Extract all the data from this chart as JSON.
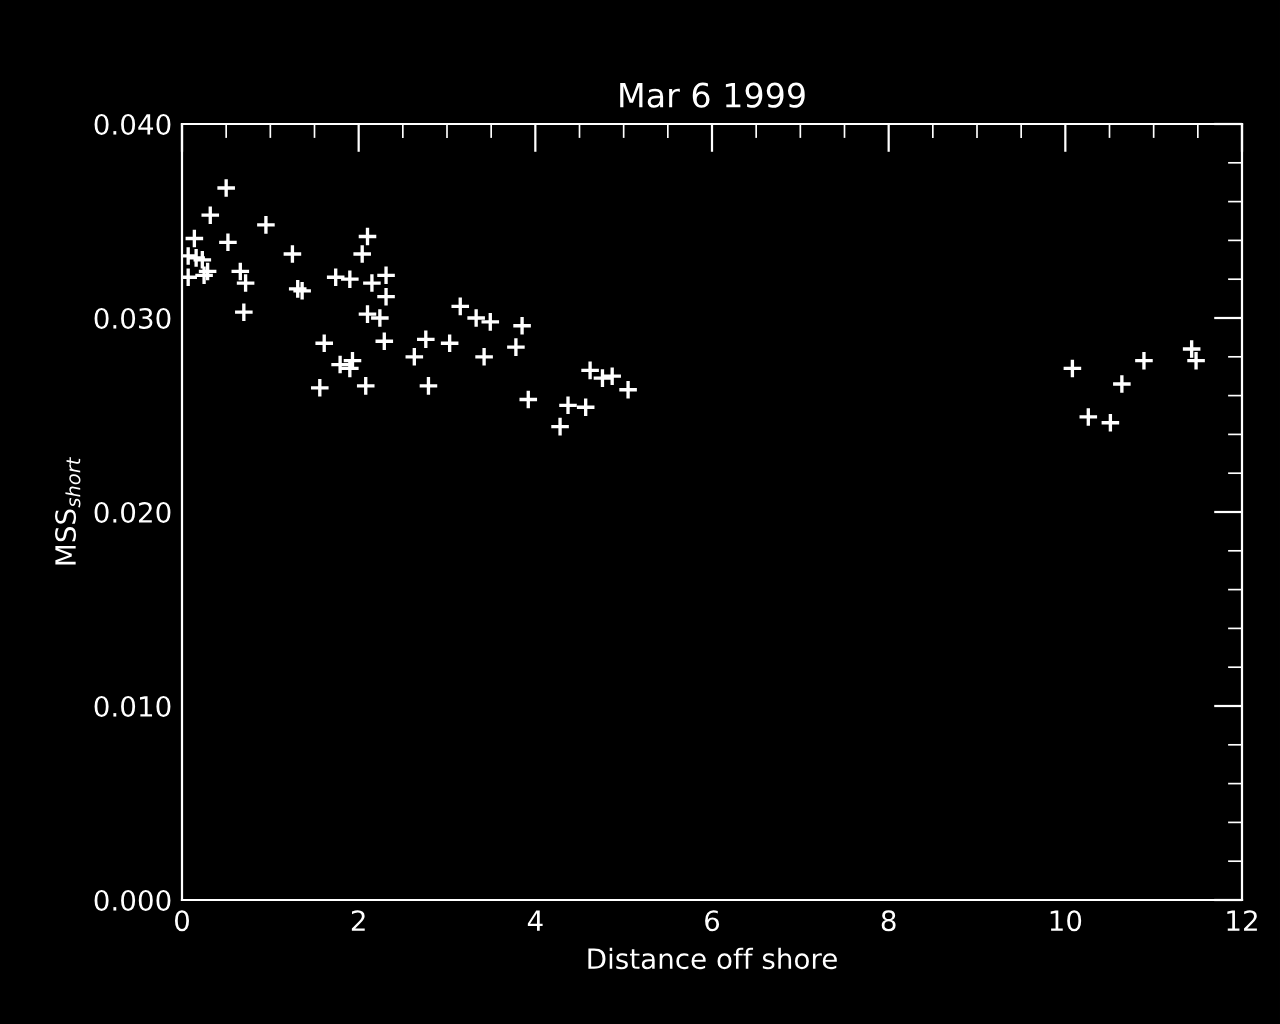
{
  "chart_data": {
    "type": "scatter",
    "title": "Mar 6 1999",
    "xlabel": "Distance off shore",
    "ylabel": "MSS$_{short}$",
    "marker": "cross",
    "series": [
      {
        "color": "#ffffff",
        "x": [
          0.5,
          0.32,
          0.95,
          0.14,
          0.52,
          1.25,
          2.1,
          2.04,
          0.07,
          0.16,
          0.23,
          0.29,
          0.25,
          0.07,
          0.66,
          0.72,
          1.31,
          1.36,
          1.74,
          1.9,
          2.31,
          2.15,
          2.31,
          0.7,
          2.1,
          2.24,
          3.15,
          1.61,
          2.29,
          2.76,
          3.03,
          2.63,
          1.79,
          1.93,
          1.9,
          1.56,
          2.08,
          2.79,
          3.33,
          3.49,
          3.85,
          3.78,
          3.42,
          3.92,
          4.37,
          4.57,
          4.28,
          4.62,
          4.76,
          4.87,
          5.05,
          10.08,
          10.89,
          10.64,
          10.26,
          10.51,
          11.43,
          11.48
        ],
        "values": [
          0.0367,
          0.0353,
          0.0348,
          0.0341,
          0.0339,
          0.0333,
          0.0342,
          0.0333,
          0.0332,
          0.0331,
          0.033,
          0.0324,
          0.0322,
          0.0321,
          0.0324,
          0.0318,
          0.0315,
          0.0314,
          0.0321,
          0.032,
          0.0322,
          0.0318,
          0.0311,
          0.0303,
          0.0302,
          0.03,
          0.0306,
          0.0287,
          0.0288,
          0.0289,
          0.0287,
          0.028,
          0.0276,
          0.0278,
          0.0274,
          0.0264,
          0.0265,
          0.0265,
          0.03,
          0.0298,
          0.0296,
          0.0285,
          0.028,
          0.0258,
          0.0255,
          0.0254,
          0.0244,
          0.0273,
          0.0269,
          0.027,
          0.0263,
          0.0274,
          0.0278,
          0.0266,
          0.0249,
          0.0246,
          0.0284,
          0.0278
        ]
      }
    ],
    "xlim": [
      0,
      12
    ],
    "ylim": [
      0,
      0.04
    ],
    "xticks": [
      0,
      2,
      4,
      6,
      8,
      10,
      12,
      {
        "value": 0.5,
        "label": null
      },
      {
        "value": 1,
        "label": null
      },
      {
        "value": 1.5,
        "label": null
      },
      {
        "value": 2.5,
        "label": null
      },
      {
        "value": 3,
        "label": null
      },
      {
        "value": 3.5,
        "label": null
      },
      {
        "value": 4.5,
        "label": null
      },
      {
        "value": 5,
        "label": null
      },
      {
        "value": 5.5,
        "label": null
      },
      {
        "value": 6.5,
        "label": null
      },
      {
        "value": 7,
        "label": null
      },
      {
        "value": 7.5,
        "label": null
      },
      {
        "value": 8.5,
        "label": null
      },
      {
        "value": 9,
        "label": null
      },
      {
        "value": 9.5,
        "label": null
      },
      {
        "value": 10.5,
        "label": null
      },
      {
        "value": 11,
        "label": null
      },
      {
        "value": 11.5,
        "label": null
      }
    ],
    "yticks": [
      {
        "value": 0,
        "label": "0.000"
      },
      {
        "value": 0.01,
        "label": "0.010"
      },
      {
        "value": 0.02,
        "label": "0.020"
      },
      {
        "value": 0.03,
        "label": "0.030"
      },
      {
        "value": 0.04,
        "label": "0.040"
      },
      {
        "value": 0.002,
        "label": null
      },
      {
        "value": 0.004,
        "label": null
      },
      {
        "value": 0.006,
        "label": null
      },
      {
        "value": 0.008,
        "label": null
      },
      {
        "value": 0.012,
        "label": null
      },
      {
        "value": 0.014,
        "label": null
      },
      {
        "value": 0.016,
        "label": null
      },
      {
        "value": 0.018,
        "label": null
      },
      {
        "value": 0.022,
        "label": null
      },
      {
        "value": 0.024,
        "label": null
      },
      {
        "value": 0.026,
        "label": null
      },
      {
        "value": 0.028,
        "label": null
      },
      {
        "value": 0.032,
        "label": null
      },
      {
        "value": 0.034,
        "label": null
      },
      {
        "value": 0.036,
        "label": null
      },
      {
        "value": 0.038,
        "label": null
      }
    ]
  }
}
